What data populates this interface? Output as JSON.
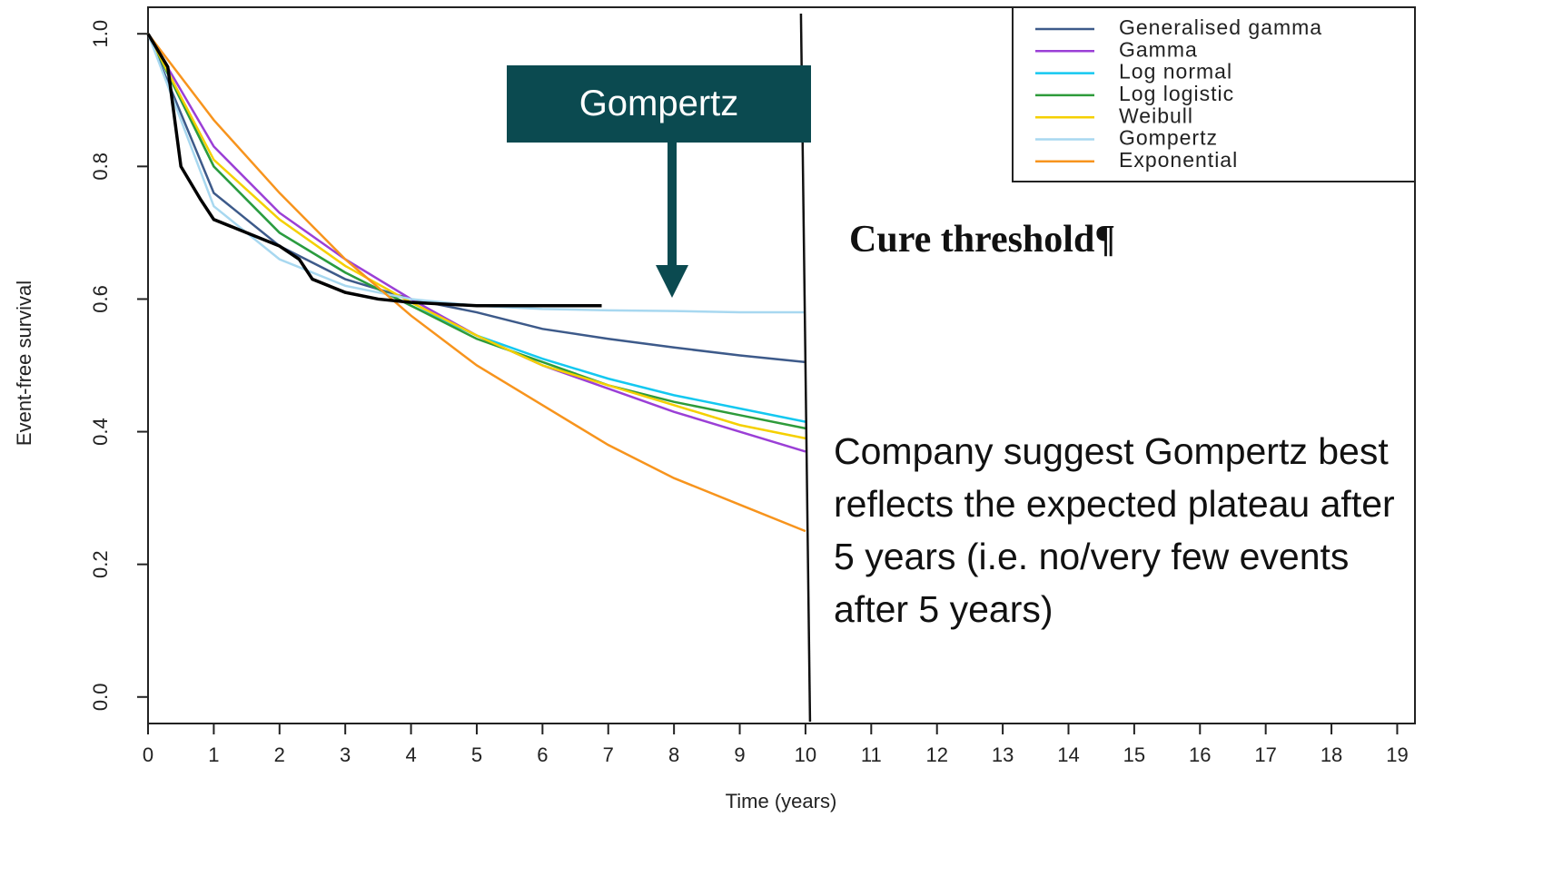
{
  "chart_data": {
    "type": "line",
    "x_label": "Time (years)",
    "y_label": "Event-free survival",
    "xlim": [
      0,
      19.27
    ],
    "ylim": [
      -0.04,
      1.04
    ],
    "xticks": [
      0,
      1,
      2,
      3,
      4,
      5,
      6,
      7,
      8,
      9,
      10,
      11,
      12,
      13,
      14,
      15,
      16,
      17,
      18,
      19
    ],
    "yticks": [
      {
        "value": 0,
        "label": "0.0"
      },
      0.2,
      0.4,
      0.6,
      0.8,
      {
        "value": 1,
        "label": "1.0"
      }
    ],
    "vline": 10,
    "series": [
      {
        "name": "Generalised gamma",
        "color": "#3d5a8a",
        "x": [
          0,
          1,
          2,
          3,
          4,
          5,
          6,
          7,
          8,
          9,
          10
        ],
        "values": [
          1.0,
          0.76,
          0.68,
          0.63,
          0.6,
          0.58,
          0.555,
          0.54,
          0.527,
          0.515,
          0.505
        ]
      },
      {
        "name": "Gamma",
        "color": "#9b3fd6",
        "x": [
          0,
          1,
          2,
          3,
          4,
          5,
          6,
          7,
          8,
          9,
          10
        ],
        "values": [
          1.0,
          0.83,
          0.73,
          0.66,
          0.6,
          0.545,
          0.5,
          0.465,
          0.43,
          0.4,
          0.37
        ]
      },
      {
        "name": "Log normal",
        "color": "#14c8f0",
        "x": [
          0,
          1,
          2,
          3,
          4,
          5,
          6,
          7,
          8,
          9,
          10
        ],
        "values": [
          1.0,
          0.8,
          0.7,
          0.64,
          0.59,
          0.545,
          0.51,
          0.48,
          0.455,
          0.435,
          0.415
        ]
      },
      {
        "name": "Log logistic",
        "color": "#2e9b3a",
        "x": [
          0,
          1,
          2,
          3,
          4,
          5,
          6,
          7,
          8,
          9,
          10
        ],
        "values": [
          1.0,
          0.8,
          0.7,
          0.64,
          0.59,
          0.54,
          0.505,
          0.47,
          0.445,
          0.425,
          0.405
        ]
      },
      {
        "name": "Weibull",
        "color": "#f5d000",
        "x": [
          0,
          1,
          2,
          3,
          4,
          5,
          6,
          7,
          8,
          9,
          10
        ],
        "values": [
          1.0,
          0.81,
          0.72,
          0.65,
          0.595,
          0.545,
          0.5,
          0.47,
          0.44,
          0.41,
          0.39
        ]
      },
      {
        "name": "Gompertz",
        "color": "#a8d8f0",
        "x": [
          0,
          1,
          2,
          3,
          4,
          5,
          6,
          7,
          8,
          9,
          10
        ],
        "values": [
          1.0,
          0.74,
          0.66,
          0.62,
          0.6,
          0.59,
          0.585,
          0.583,
          0.582,
          0.58,
          0.58
        ]
      },
      {
        "name": "Exponential",
        "color": "#f7941d",
        "x": [
          0,
          1,
          2,
          3,
          4,
          5,
          6,
          7,
          8,
          9,
          10
        ],
        "values": [
          1.0,
          0.87,
          0.76,
          0.66,
          0.575,
          0.5,
          0.44,
          0.38,
          0.33,
          0.29,
          0.25
        ]
      },
      {
        "color": "#000000",
        "x": [
          0,
          0.3,
          0.5,
          0.8,
          1,
          1.5,
          2,
          2.3,
          2.5,
          3,
          3.5,
          4,
          5,
          6.9
        ],
        "values": [
          1.0,
          0.95,
          0.8,
          0.75,
          0.72,
          0.7,
          0.68,
          0.66,
          0.63,
          0.61,
          0.6,
          0.595,
          0.59,
          0.59
        ]
      }
    ],
    "annotations": [
      "Gompertz",
      "Cure threshold¶",
      "Company suggest Gompertz best reflects the expected plateau after 5 years (i.e. no/very few events after 5 years)"
    ]
  }
}
